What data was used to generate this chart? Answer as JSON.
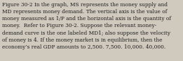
{
  "text": "Figure 30-2 In the graph, MS represents the money supply and\nMD represents money demand. The vertical axis is the value of\nmoney measured as 1/P and the horizontal axis is the quantity of\nmoney.  Refer to Figure 30-2. Suppose the relevant money-\ndemand curve is the one labeled MD1; also suppose the velocity\nof money is 4. If the money market is in equilibrium, then the\neconomy’s real GDP amounts to 2,500. 7,500. 10,000. 40,000.",
  "background_color": "#cfc9be",
  "text_color": "#1e1e1e",
  "font_size": 5.3,
  "fig_width": 2.61,
  "fig_height": 0.88,
  "dpi": 100
}
